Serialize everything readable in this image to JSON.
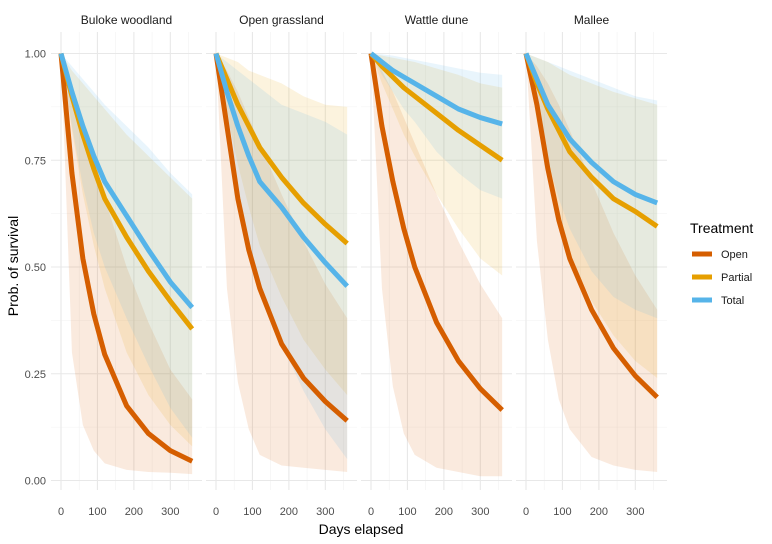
{
  "chart_data": {
    "type": "line",
    "xlabel": "Days elapsed",
    "ylabel": "Prob. of survival",
    "xlim": [
      0,
      365
    ],
    "ylim": [
      0,
      1
    ],
    "xticks": [
      0,
      100,
      200,
      300
    ],
    "xtick_labels": [
      "0",
      "100",
      "200",
      "300"
    ],
    "yticks": [
      0,
      0.25,
      0.5,
      0.75,
      1.0
    ],
    "ytick_labels": [
      "0.00",
      "0.25",
      "0.50",
      "0.75",
      "1.00"
    ],
    "grid": true,
    "legend": {
      "title": "Treatment",
      "position": "right"
    },
    "series_styles": [
      {
        "name": "Open",
        "color": "#D55E00"
      },
      {
        "name": "Partial",
        "color": "#E69F00"
      },
      {
        "name": "Total",
        "color": "#56B4E9"
      }
    ],
    "x": [
      0,
      30,
      60,
      90,
      120,
      180,
      240,
      300,
      360
    ],
    "panels": [
      {
        "title": "Buloke woodland",
        "series": [
          {
            "name": "Open",
            "values": [
              1.0,
              0.72,
              0.52,
              0.39,
              0.295,
              0.175,
              0.11,
              0.07,
              0.045
            ],
            "lower": [
              1.0,
              0.3,
              0.13,
              0.07,
              0.04,
              0.025,
              0.02,
              0.018,
              0.015
            ],
            "upper": [
              1.0,
              0.93,
              0.84,
              0.75,
              0.66,
              0.5,
              0.37,
              0.26,
              0.19
            ]
          },
          {
            "name": "Partial",
            "values": [
              1.0,
              0.9,
              0.81,
              0.73,
              0.66,
              0.57,
              0.49,
              0.42,
              0.355
            ],
            "lower": [
              1.0,
              0.82,
              0.67,
              0.55,
              0.45,
              0.3,
              0.2,
              0.13,
              0.08
            ],
            "upper": [
              1.0,
              0.96,
              0.93,
              0.9,
              0.87,
              0.81,
              0.76,
              0.71,
              0.66
            ]
          },
          {
            "name": "Total",
            "values": [
              1.0,
              0.91,
              0.83,
              0.76,
              0.7,
              0.62,
              0.54,
              0.465,
              0.405
            ],
            "lower": [
              1.0,
              0.83,
              0.69,
              0.58,
              0.5,
              0.38,
              0.27,
              0.17,
              0.1
            ],
            "upper": [
              1.0,
              0.97,
              0.94,
              0.91,
              0.88,
              0.83,
              0.78,
              0.72,
              0.67
            ]
          }
        ]
      },
      {
        "title": "Open grassland",
        "series": [
          {
            "name": "Open",
            "values": [
              1.0,
              0.83,
              0.66,
              0.54,
              0.45,
              0.32,
              0.24,
              0.185,
              0.14
            ],
            "lower": [
              1.0,
              0.45,
              0.23,
              0.12,
              0.06,
              0.035,
              0.03,
              0.025,
              0.02
            ],
            "upper": [
              1.0,
              0.96,
              0.91,
              0.85,
              0.79,
              0.67,
              0.56,
              0.46,
              0.38
            ]
          },
          {
            "name": "Partial",
            "values": [
              1.0,
              0.94,
              0.88,
              0.83,
              0.78,
              0.71,
              0.65,
              0.6,
              0.555
            ],
            "lower": [
              1.0,
              0.86,
              0.74,
              0.64,
              0.55,
              0.43,
              0.33,
              0.26,
              0.2
            ],
            "upper": [
              1.0,
              0.99,
              0.98,
              0.96,
              0.95,
              0.93,
              0.9,
              0.88,
              0.875
            ]
          },
          {
            "name": "Total",
            "values": [
              1.0,
              0.91,
              0.83,
              0.76,
              0.7,
              0.64,
              0.57,
              0.51,
              0.455
            ],
            "lower": [
              1.0,
              0.82,
              0.67,
              0.54,
              0.45,
              0.32,
              0.21,
              0.12,
              0.05
            ],
            "upper": [
              1.0,
              0.98,
              0.96,
              0.94,
              0.92,
              0.88,
              0.86,
              0.84,
              0.81
            ]
          }
        ]
      },
      {
        "title": "Wattle dune",
        "series": [
          {
            "name": "Open",
            "values": [
              1.0,
              0.83,
              0.7,
              0.59,
              0.5,
              0.37,
              0.28,
              0.215,
              0.165
            ],
            "lower": [
              1.0,
              0.45,
              0.22,
              0.11,
              0.06,
              0.03,
              0.02,
              0.01,
              0.01
            ],
            "upper": [
              1.0,
              0.96,
              0.91,
              0.85,
              0.79,
              0.67,
              0.56,
              0.46,
              0.38
            ]
          },
          {
            "name": "Partial",
            "values": [
              1.0,
              0.97,
              0.945,
              0.92,
              0.9,
              0.86,
              0.82,
              0.785,
              0.75
            ],
            "lower": [
              1.0,
              0.93,
              0.87,
              0.81,
              0.76,
              0.67,
              0.59,
              0.52,
              0.48
            ],
            "upper": [
              1.0,
              0.995,
              0.99,
              0.985,
              0.98,
              0.965,
              0.95,
              0.93,
              0.92
            ]
          },
          {
            "name": "Total",
            "values": [
              1.0,
              0.98,
              0.96,
              0.945,
              0.93,
              0.9,
              0.87,
              0.85,
              0.835
            ],
            "lower": [
              1.0,
              0.95,
              0.91,
              0.87,
              0.84,
              0.77,
              0.72,
              0.68,
              0.66
            ],
            "upper": [
              1.0,
              0.998,
              0.995,
              0.99,
              0.985,
              0.975,
              0.965,
              0.955,
              0.95
            ]
          }
        ]
      },
      {
        "title": "Mallee",
        "series": [
          {
            "name": "Open",
            "values": [
              1.0,
              0.88,
              0.73,
              0.61,
              0.52,
              0.4,
              0.31,
              0.245,
              0.195
            ],
            "lower": [
              1.0,
              0.56,
              0.33,
              0.19,
              0.12,
              0.055,
              0.035,
              0.025,
              0.02
            ],
            "upper": [
              1.0,
              0.97,
              0.93,
              0.88,
              0.82,
              0.7,
              0.58,
              0.48,
              0.4
            ]
          },
          {
            "name": "Partial",
            "values": [
              1.0,
              0.93,
              0.87,
              0.82,
              0.77,
              0.71,
              0.66,
              0.63,
              0.595
            ],
            "lower": [
              1.0,
              0.84,
              0.71,
              0.61,
              0.53,
              0.42,
              0.34,
              0.28,
              0.24
            ],
            "upper": [
              1.0,
              0.99,
              0.98,
              0.965,
              0.95,
              0.93,
              0.91,
              0.895,
              0.88
            ]
          },
          {
            "name": "Total",
            "values": [
              1.0,
              0.94,
              0.88,
              0.84,
              0.8,
              0.745,
              0.7,
              0.67,
              0.65
            ],
            "lower": [
              1.0,
              0.86,
              0.75,
              0.66,
              0.59,
              0.49,
              0.43,
              0.4,
              0.38
            ],
            "upper": [
              1.0,
              0.99,
              0.98,
              0.97,
              0.96,
              0.94,
              0.92,
              0.9,
              0.89
            ]
          }
        ]
      }
    ]
  }
}
